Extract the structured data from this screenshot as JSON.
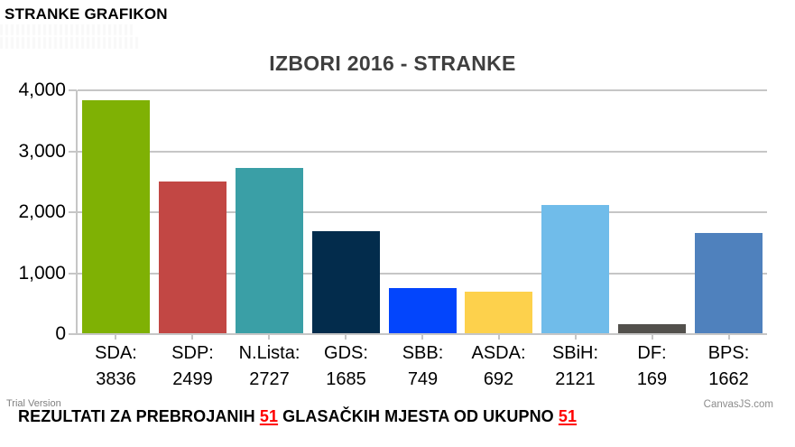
{
  "page": {
    "heading": "STRANKE GRAFIKON",
    "trial_label": "Trial Version",
    "credit_label": "CanvasJS.com",
    "footer": {
      "part1": "REZULTATI ZA PREBROJANIH ",
      "count1": "51",
      "part2": " GLASAČKIH MJESTA OD UKUPNO ",
      "count2": "51"
    }
  },
  "chart_data": {
    "type": "bar",
    "title": "IZBORI 2016 - STRANKE",
    "categories": [
      "SDA:",
      "SDP:",
      "N.Lista:",
      "GDS:",
      "SBB:",
      "ASDA:",
      "SBiH:",
      "DF:",
      "BPS:"
    ],
    "values": [
      3836,
      2499,
      2727,
      1685,
      749,
      692,
      2121,
      169,
      1662
    ],
    "bar_colors": [
      "#7FB104",
      "#C24744",
      "#3A9FA6",
      "#032C4C",
      "#0345FC",
      "#FDD14C",
      "#70BCEA",
      "#52504C",
      "#4F81BD"
    ],
    "y_tick_labels": [
      "4,000",
      "3,000",
      "2,000",
      "1,000",
      "0"
    ],
    "ylim": [
      0,
      4000
    ],
    "xlabel": "",
    "ylabel": "",
    "grid": true,
    "legend": "none"
  },
  "colors": {
    "title_text": "#3F3F3F",
    "grid": "#C6C6C6",
    "accent_red": "#FF0000",
    "muted_gray": "#7F7F7F",
    "text": "#000000"
  }
}
